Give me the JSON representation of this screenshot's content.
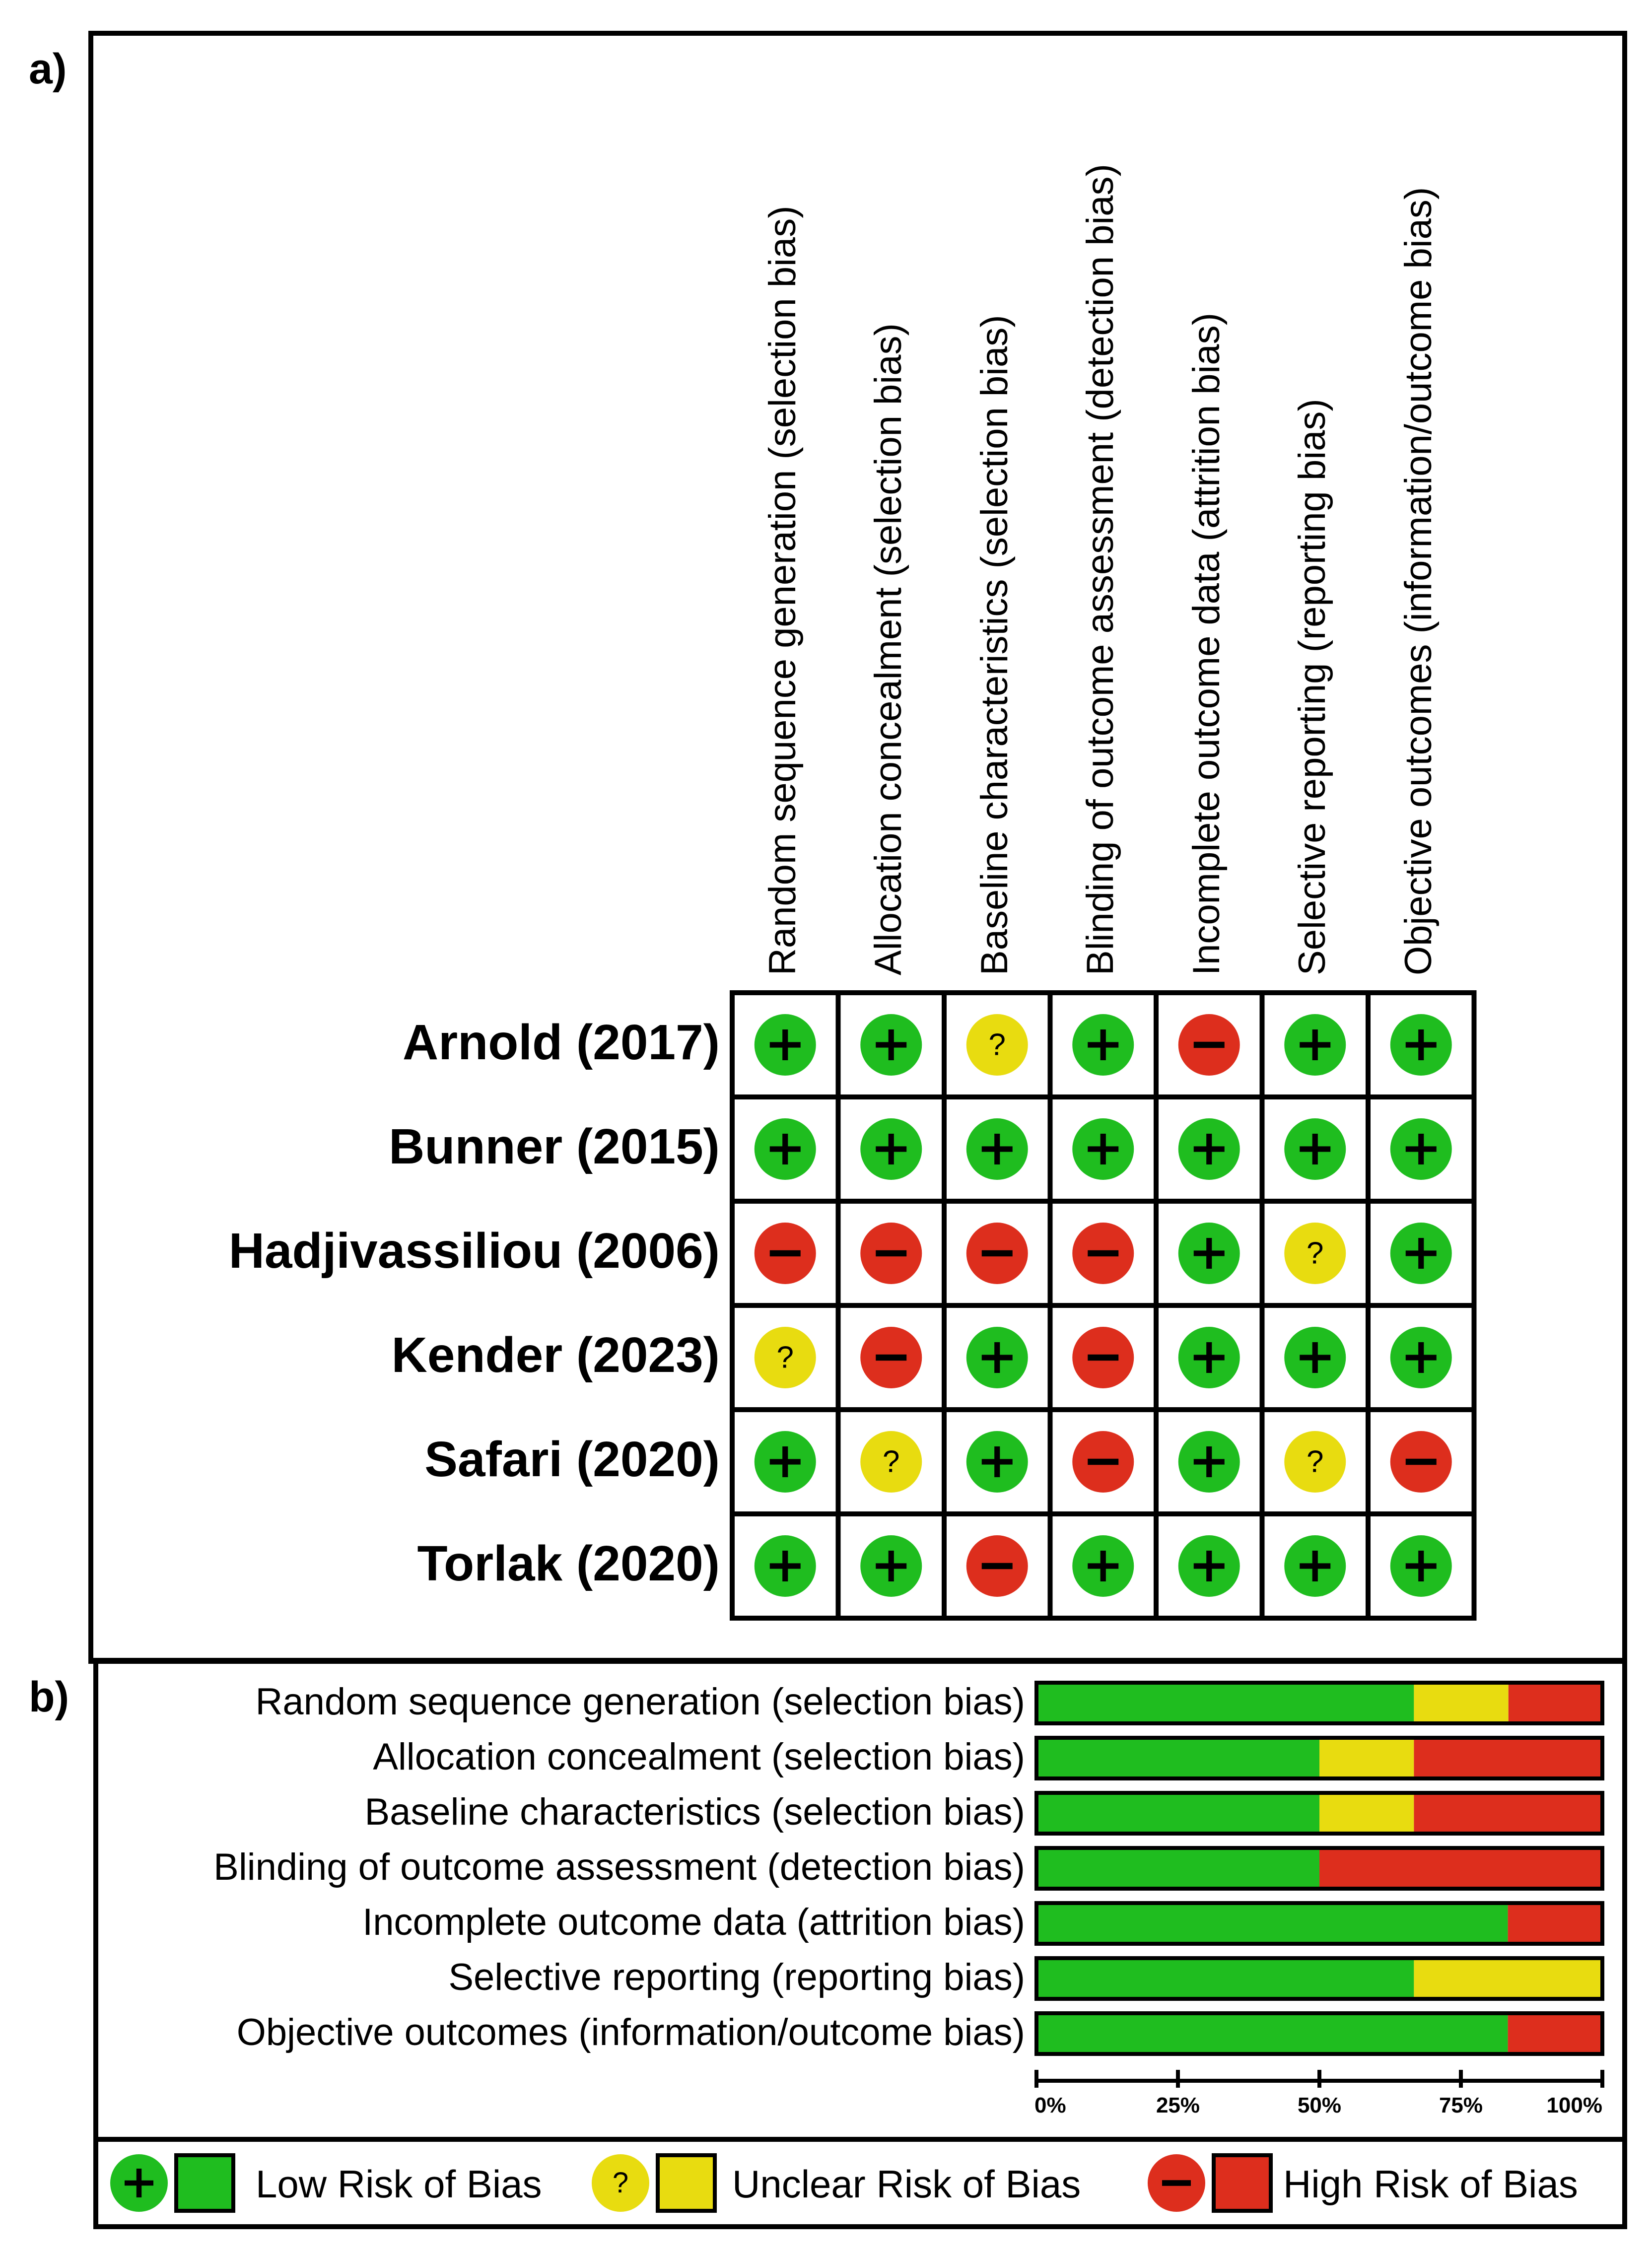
{
  "panel_a_label": "a)",
  "panel_b_label": "b)",
  "colors": {
    "low": "#1fbd1f",
    "unclear": "#e8dc10",
    "high": "#dd2e1d"
  },
  "icon_names": {
    "low": "plus-icon",
    "unclear": "question-icon",
    "high": "minus-icon"
  },
  "chart_data": [
    {
      "type": "table",
      "columns": [
        "Random sequence generation (selection bias)",
        "Allocation concealment (selection bias)",
        "Baseline characteristics (selection bias)",
        "Blinding of outcome assessment (detection bias)",
        "Incomplete outcome data (attrition bias)",
        "Selective reporting (reporting bias)",
        "Objective outcomes (information/outcome bias)"
      ],
      "rows": [
        {
          "study": "Arnold (2017)",
          "ratings": [
            "low",
            "low",
            "unclear",
            "low",
            "high",
            "low",
            "low"
          ]
        },
        {
          "study": "Bunner (2015)",
          "ratings": [
            "low",
            "low",
            "low",
            "low",
            "low",
            "low",
            "low"
          ]
        },
        {
          "study": "Hadjivassiliou (2006)",
          "ratings": [
            "high",
            "high",
            "high",
            "high",
            "low",
            "unclear",
            "low"
          ]
        },
        {
          "study": "Kender (2023)",
          "ratings": [
            "unclear",
            "high",
            "low",
            "high",
            "low",
            "low",
            "low"
          ]
        },
        {
          "study": "Safari (2020)",
          "ratings": [
            "low",
            "unclear",
            "low",
            "high",
            "low",
            "unclear",
            "high"
          ]
        },
        {
          "study": "Torlak (2020)",
          "ratings": [
            "low",
            "low",
            "high",
            "low",
            "low",
            "low",
            "low"
          ]
        }
      ],
      "symbols": {
        "low": "+",
        "unclear": "?",
        "high": "−"
      }
    },
    {
      "type": "bar",
      "orientation": "horizontal-stacked-percent",
      "categories": [
        "Random sequence generation (selection bias)",
        "Allocation concealment (selection bias)",
        "Baseline characteristics (selection bias)",
        "Blinding of outcome assessment (detection bias)",
        "Incomplete outcome data (attrition bias)",
        "Selective reporting (reporting bias)",
        "Objective outcomes (information/outcome bias)"
      ],
      "series": [
        {
          "name": "Low Risk of Bias",
          "values": [
            66.7,
            50,
            50,
            50,
            83.3,
            66.7,
            83.3
          ]
        },
        {
          "name": "Unclear Risk of Bias",
          "values": [
            16.7,
            16.7,
            16.7,
            0,
            0,
            33.3,
            0
          ]
        },
        {
          "name": "High Risk of Bias",
          "values": [
            16.7,
            33.3,
            33.3,
            50,
            16.7,
            0,
            16.7
          ]
        }
      ],
      "xlim": [
        0,
        100
      ],
      "xticks": [
        "0%",
        "25%",
        "50%",
        "75%",
        "100%"
      ]
    }
  ],
  "legend": [
    {
      "key": "low",
      "label": "Low Risk of Bias"
    },
    {
      "key": "unclear",
      "label": "Unclear Risk of Bias"
    },
    {
      "key": "high",
      "label": "High Risk of Bias"
    }
  ]
}
